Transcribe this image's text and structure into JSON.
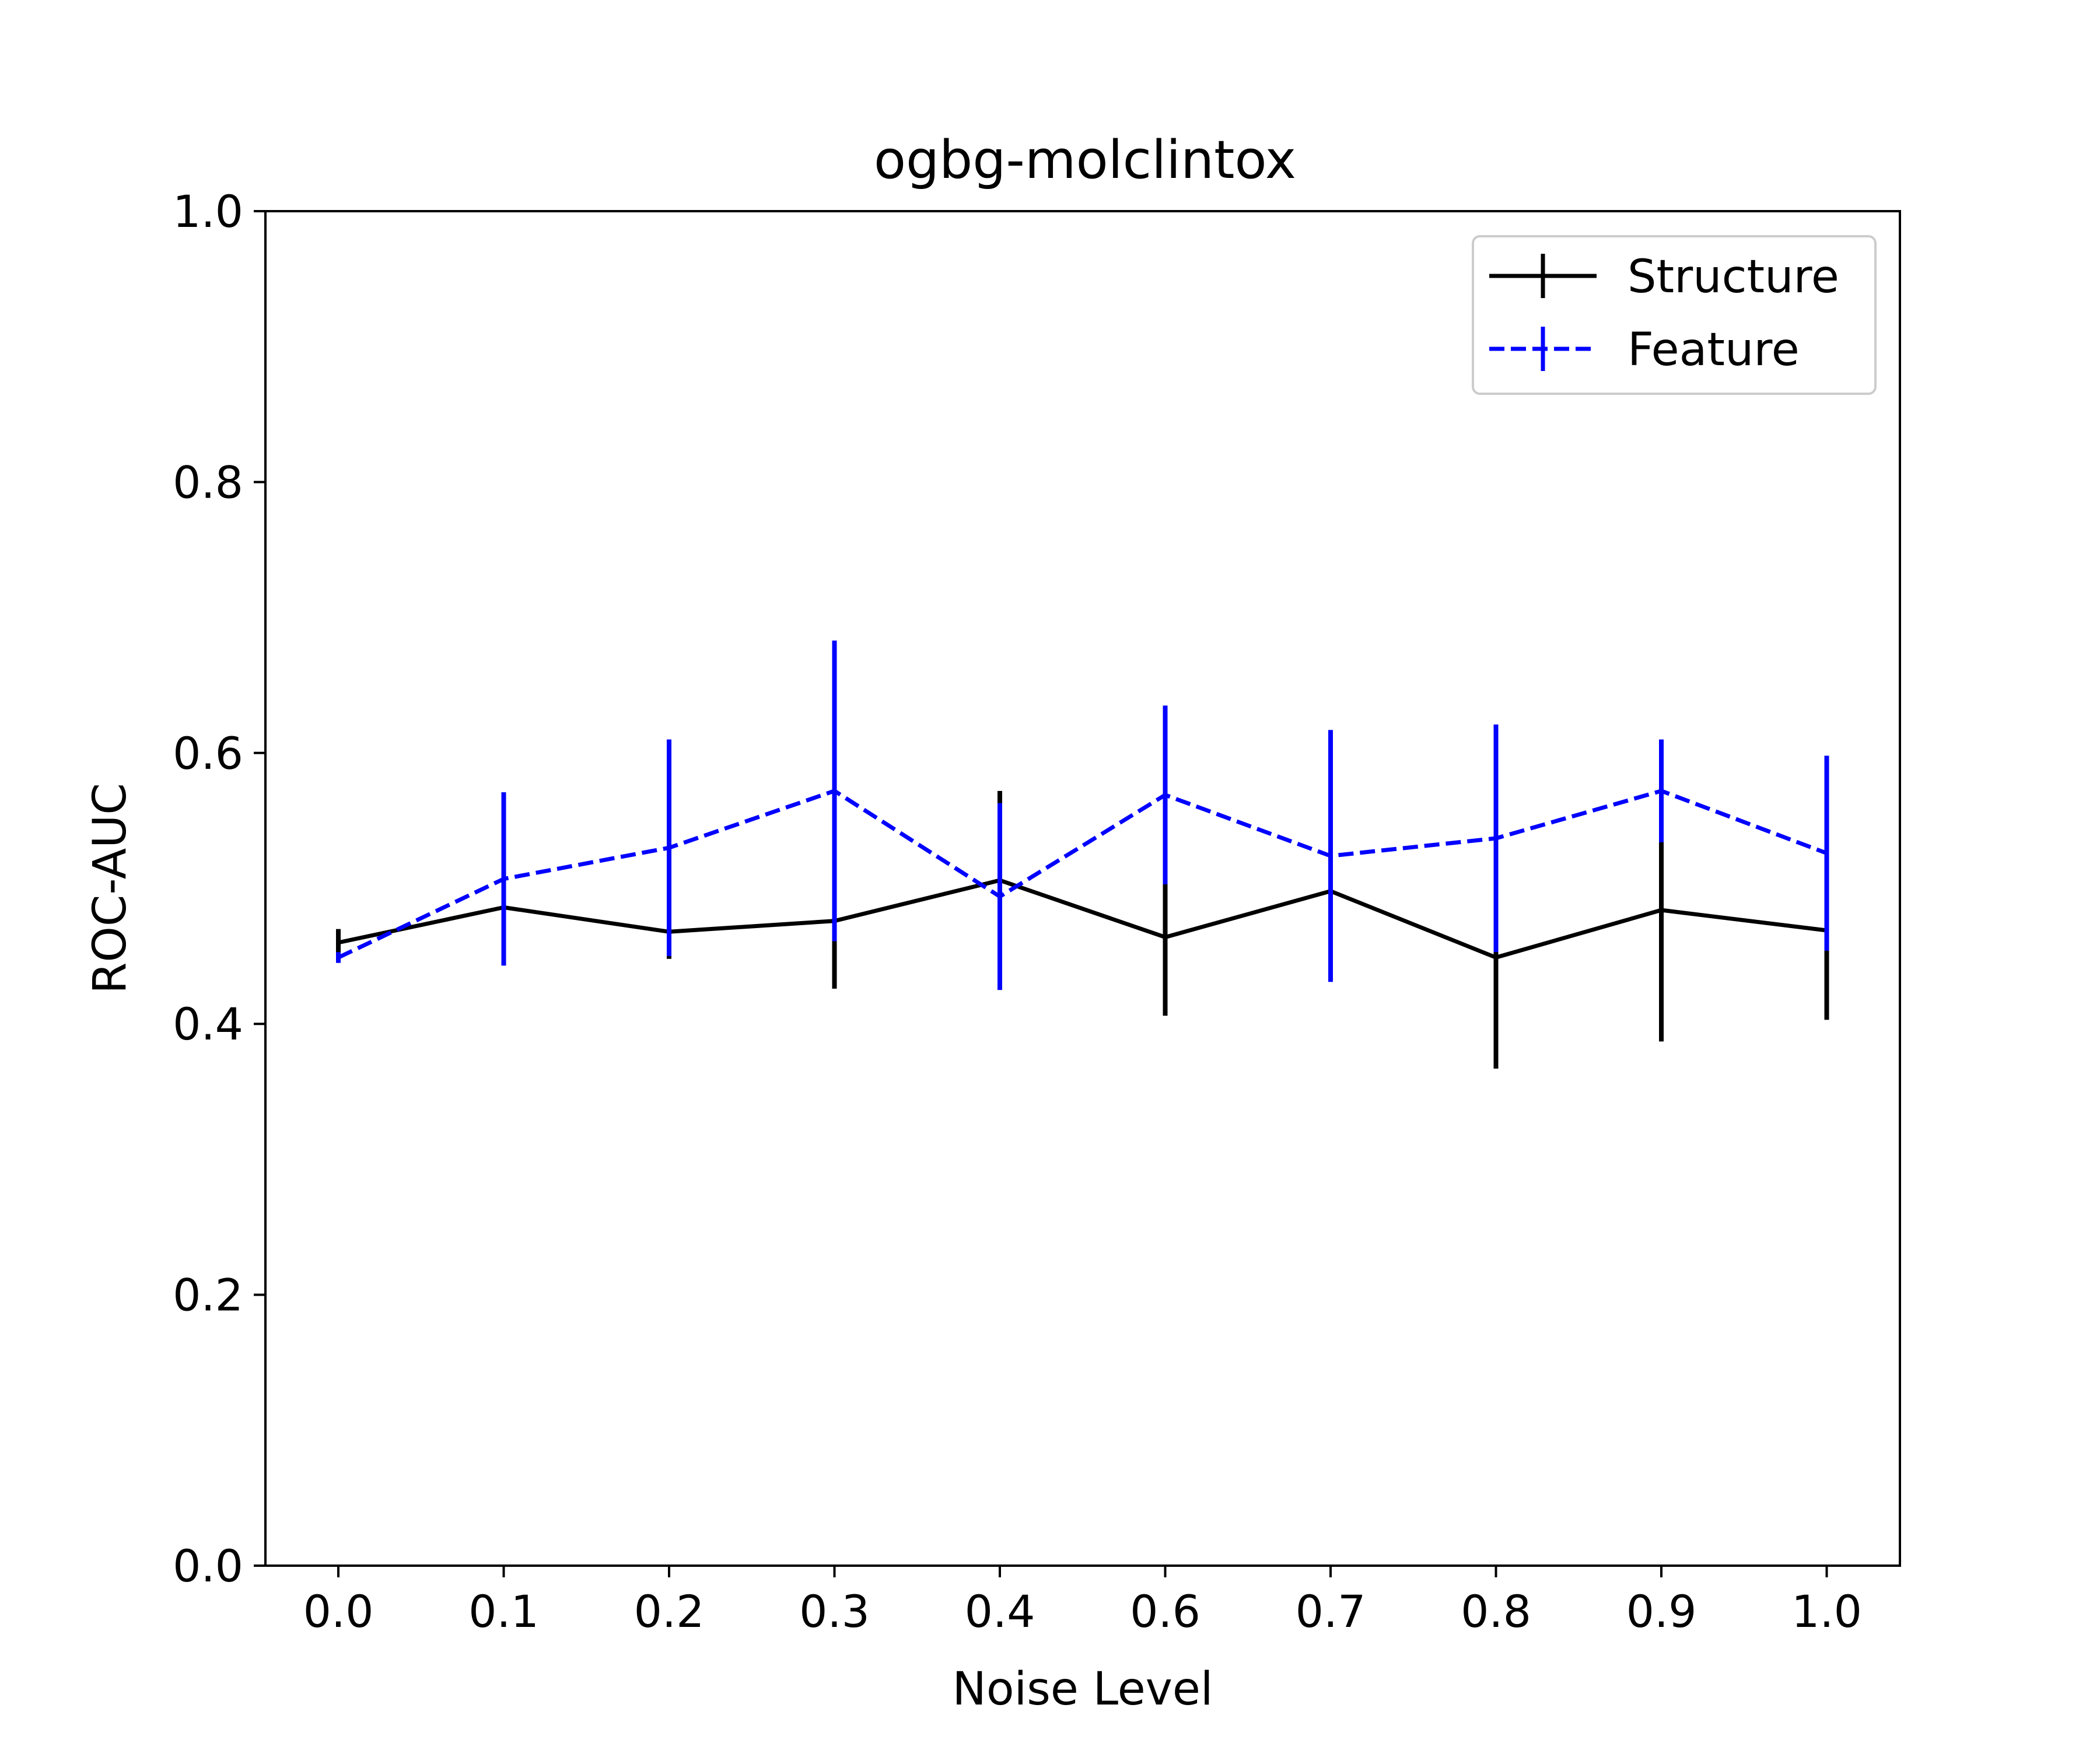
{
  "chart_data": {
    "type": "line",
    "title": "ogbg-molclintox",
    "xlabel": "Noise Level",
    "ylabel": "ROC-AUC",
    "categories": [
      "0.0",
      "0.1",
      "0.2",
      "0.3",
      "0.4",
      "0.6",
      "0.7",
      "0.8",
      "0.9",
      "1.0"
    ],
    "ylim": [
      0,
      1
    ],
    "yticks": [
      "0.0",
      "0.2",
      "0.4",
      "0.6",
      "0.8",
      "1.0"
    ],
    "grid": false,
    "legend_position": "top-right",
    "series": [
      {
        "name": "Structure",
        "color": "#000000",
        "line_style": "solid",
        "values": [
          0.46,
          0.486,
          0.468,
          0.476,
          0.506,
          0.464,
          0.498,
          0.449,
          0.484,
          0.469
        ],
        "error": [
          0.01,
          0.042,
          0.02,
          0.05,
          0.066,
          0.058,
          0.0,
          0.082,
          0.097,
          0.066
        ]
      },
      {
        "name": "Feature",
        "color": "#0000ff",
        "line_style": "dashed",
        "values": [
          0.449,
          0.507,
          0.53,
          0.572,
          0.494,
          0.569,
          0.524,
          0.537,
          0.572,
          0.526
        ],
        "error": [
          0.004,
          0.064,
          0.08,
          0.111,
          0.069,
          0.066,
          0.093,
          0.084,
          0.038,
          0.072
        ]
      }
    ]
  }
}
